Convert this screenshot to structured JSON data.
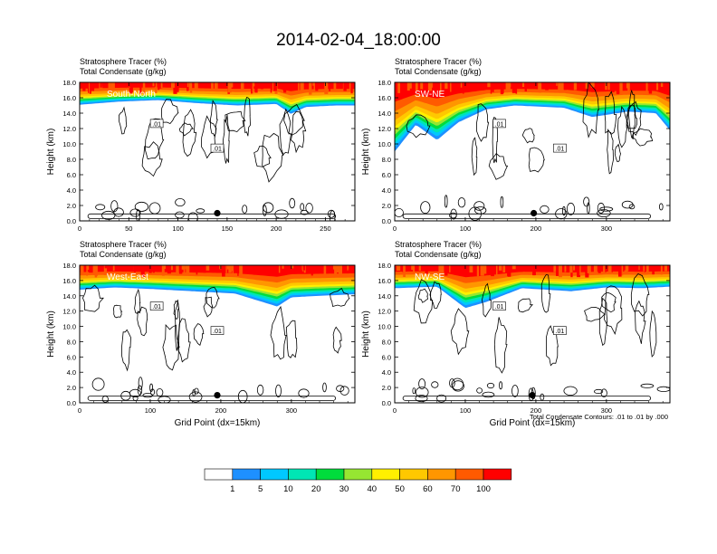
{
  "figure": {
    "title": "2014-02-04_18:00:00",
    "footnote": "Total Condensate Contours: .01 to .01 by .000",
    "colorbar": {
      "colors": [
        "#ffffff",
        "#1e90ff",
        "#00c8ff",
        "#00e6b4",
        "#00dc3c",
        "#96e632",
        "#fff000",
        "#ffc800",
        "#ff9600",
        "#ff5a00",
        "#ff0000"
      ],
      "labels": [
        "1",
        "5",
        "10",
        "20",
        "30",
        "40",
        "50",
        "60",
        "70",
        "100"
      ]
    }
  },
  "chart_data": [
    {
      "type": "heatmap",
      "panel_label": "South-North",
      "subtitle_line1": "Stratosphere Tracer   (%)",
      "subtitle_line2": "Total Condensate   (g/kg)",
      "ylabel": "Height (km)",
      "xlabel": "",
      "xlim": [
        0,
        280
      ],
      "ylim": [
        0,
        18
      ],
      "xticks": [
        "0",
        "50",
        "100",
        "150",
        "200",
        "250"
      ],
      "yticks": [
        "0.0",
        "2.0",
        "4.0",
        "6.0",
        "8.0",
        "10.0",
        "12.0",
        "14.0",
        "16.0",
        "18.0"
      ],
      "contour_label": ".01",
      "tracer_bottom_km": [
        [
          0,
          15.1
        ],
        [
          40,
          15.5
        ],
        [
          80,
          15.7
        ],
        [
          120,
          15.3
        ],
        [
          160,
          15.0
        ],
        [
          200,
          15.2
        ],
        [
          215,
          13.9
        ],
        [
          230,
          14.8
        ],
        [
          260,
          15.0
        ],
        [
          280,
          15.0
        ]
      ],
      "marker": [
        140,
        1.0
      ]
    },
    {
      "type": "heatmap",
      "panel_label": "SW-NE",
      "subtitle_line1": "Stratosphere Tracer   (%)",
      "subtitle_line2": "Total Condensate   (g/kg)",
      "ylabel": "Height (km)",
      "xlabel": "",
      "xlim": [
        0,
        390
      ],
      "ylim": [
        0,
        18
      ],
      "xticks": [
        "0",
        "100",
        "200",
        "300"
      ],
      "yticks": [
        "0.0",
        "2.0",
        "4.0",
        "6.0",
        "8.0",
        "10.0",
        "12.0",
        "14.0",
        "16.0",
        "18.0"
      ],
      "contour_label": ".01",
      "tracer_bottom_km": [
        [
          0,
          9.0
        ],
        [
          30,
          12.5
        ],
        [
          60,
          10.5
        ],
        [
          90,
          12.8
        ],
        [
          130,
          14.5
        ],
        [
          170,
          15.0
        ],
        [
          240,
          14.7
        ],
        [
          280,
          13.5
        ],
        [
          330,
          14.2
        ],
        [
          370,
          14.0
        ],
        [
          390,
          11.8
        ]
      ],
      "marker": [
        197,
        1.0
      ]
    },
    {
      "type": "heatmap",
      "panel_label": "West-East",
      "subtitle_line1": "Stratosphere Tracer   (%)",
      "subtitle_line2": "Total Condensate   (g/kg)",
      "ylabel": "Height (km)",
      "xlabel": "Grid Point (dx=15km)",
      "xlim": [
        0,
        390
      ],
      "ylim": [
        0,
        18
      ],
      "xticks": [
        "0",
        "100",
        "200",
        "300"
      ],
      "yticks": [
        "0.0",
        "2.0",
        "4.0",
        "6.0",
        "8.0",
        "10.0",
        "12.0",
        "14.0",
        "16.0",
        "18.0"
      ],
      "contour_label": ".01",
      "tracer_bottom_km": [
        [
          0,
          14.8
        ],
        [
          50,
          15.1
        ],
        [
          100,
          14.9
        ],
        [
          160,
          14.6
        ],
        [
          220,
          14.3
        ],
        [
          280,
          12.6
        ],
        [
          300,
          13.8
        ],
        [
          340,
          14.0
        ],
        [
          390,
          14.2
        ]
      ],
      "marker": [
        195,
        1.0
      ]
    },
    {
      "type": "heatmap",
      "panel_label": "NW-SE",
      "subtitle_line1": "Stratosphere Tracer   (%)",
      "subtitle_line2": "Total Condensate   (g/kg)",
      "ylabel": "Height (km)",
      "xlabel": "Grid Point (dx=15km)",
      "xlim": [
        0,
        390
      ],
      "ylim": [
        0,
        18
      ],
      "xticks": [
        "0",
        "100",
        "200",
        "300"
      ],
      "yticks": [
        "0.0",
        "2.0",
        "4.0",
        "6.0",
        "8.0",
        "10.0",
        "12.0",
        "14.0",
        "16.0",
        "18.0"
      ],
      "contour_label": ".01",
      "tracer_bottom_km": [
        [
          0,
          15.0
        ],
        [
          60,
          15.2
        ],
        [
          100,
          12.4
        ],
        [
          130,
          13.2
        ],
        [
          180,
          15.0
        ],
        [
          250,
          14.6
        ],
        [
          300,
          15.1
        ],
        [
          350,
          15.0
        ],
        [
          390,
          15.2
        ]
      ],
      "marker": [
        195,
        1.0
      ]
    }
  ]
}
